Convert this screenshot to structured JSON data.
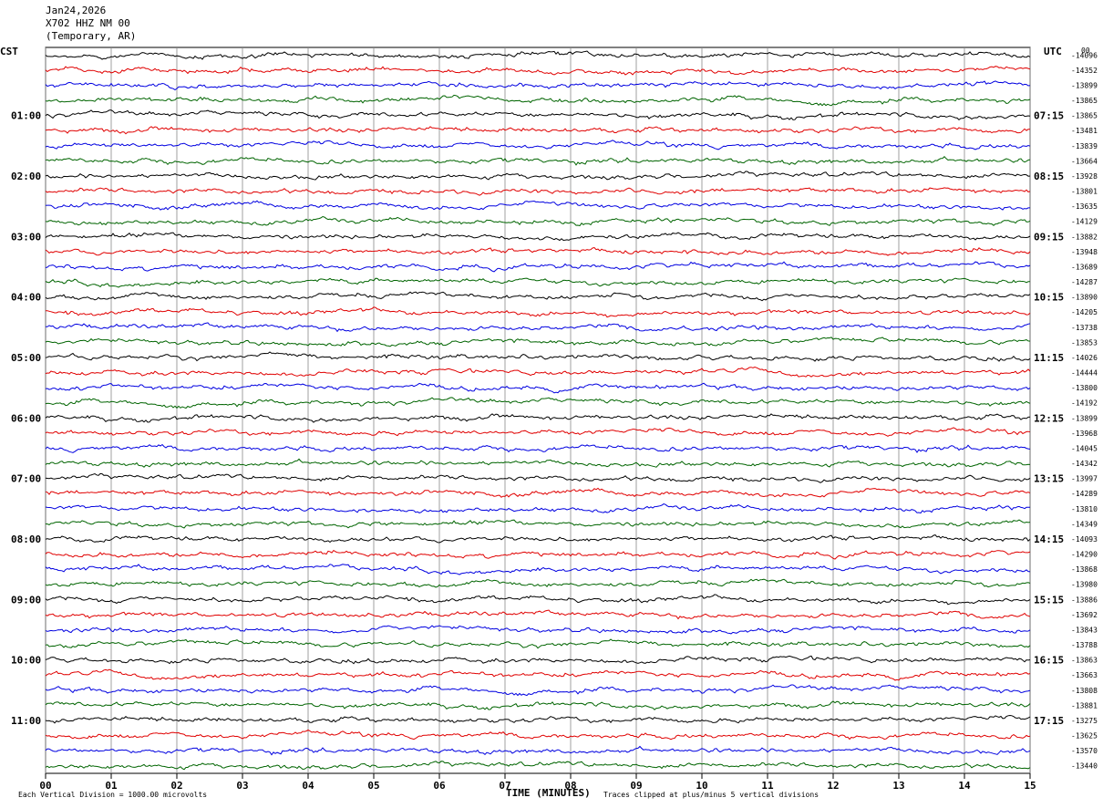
{
  "header": {
    "line1": "Jan24,2026",
    "line2": "X702 HHZ NM 00",
    "line3": "(Temporary, AR)"
  },
  "left_tz": "CST",
  "right_tz": "UTC",
  "corner_label": "00",
  "footer": {
    "left_note": "Each Vertical Division = 1000.00 microvolts",
    "center_label": "TIME (MINUTES)",
    "right_note": "Traces clipped at plus/minus 5 vertical divisions"
  },
  "chart_data": {
    "type": "line",
    "xlabel": "TIME (MINUTES)",
    "xlim": [
      0,
      15
    ],
    "x_ticks": [
      "00",
      "01",
      "02",
      "03",
      "04",
      "05",
      "06",
      "07",
      "08",
      "09",
      "10",
      "11",
      "12",
      "13",
      "14",
      "15"
    ],
    "trace_count": 48,
    "trace_colors": [
      "#000000",
      "#e00000",
      "#0000e0",
      "#006400"
    ],
    "left_hour_labels": [
      {
        "trace": 4,
        "label": "01:00"
      },
      {
        "trace": 8,
        "label": "02:00"
      },
      {
        "trace": 12,
        "label": "03:00"
      },
      {
        "trace": 16,
        "label": "04:00"
      },
      {
        "trace": 20,
        "label": "05:00"
      },
      {
        "trace": 24,
        "label": "06:00"
      },
      {
        "trace": 28,
        "label": "07:00"
      },
      {
        "trace": 32,
        "label": "08:00"
      },
      {
        "trace": 36,
        "label": "09:00"
      },
      {
        "trace": 40,
        "label": "10:00"
      },
      {
        "trace": 44,
        "label": "11:00"
      }
    ],
    "right_hour_labels": [
      {
        "trace": 4,
        "label": "07:15"
      },
      {
        "trace": 8,
        "label": "08:15"
      },
      {
        "trace": 12,
        "label": "09:15"
      },
      {
        "trace": 16,
        "label": "10:15"
      },
      {
        "trace": 20,
        "label": "11:15"
      },
      {
        "trace": 24,
        "label": "12:15"
      },
      {
        "trace": 28,
        "label": "13:15"
      },
      {
        "trace": 32,
        "label": "14:15"
      },
      {
        "trace": 36,
        "label": "15:15"
      },
      {
        "trace": 40,
        "label": "16:15"
      },
      {
        "trace": 44,
        "label": "17:15"
      }
    ],
    "trace_values": [
      "-14096",
      "-14352",
      "-13899",
      "-13865",
      "-13865",
      "-13481",
      "-13839",
      "-13664",
      "-13928",
      "-13801",
      "-13635",
      "-14129",
      "-13882",
      "-13948",
      "-13689",
      "-14287",
      "-13890",
      "-14205",
      "-13738",
      "-13853",
      "-14026",
      "-14444",
      "-13800",
      "-14192",
      "-13899",
      "-13968",
      "-14045",
      "-14342",
      "-13997",
      "-14289",
      "-13810",
      "-14349",
      "-14093",
      "-14290",
      "-13868",
      "-13980",
      "-13886",
      "-13692",
      "-13843",
      "-13788",
      "-13863",
      "-13663",
      "-13808",
      "-13881",
      "-13275",
      "-13625",
      "-13570",
      "-13440"
    ]
  }
}
